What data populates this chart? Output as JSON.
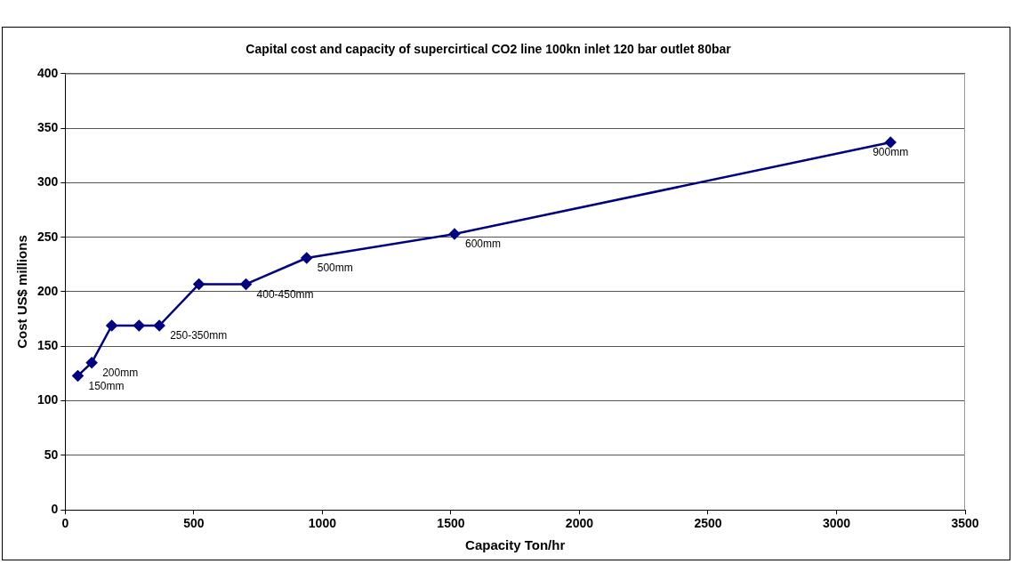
{
  "chart_data": {
    "type": "line",
    "title": "Capital cost and capacity of supercirtical CO2 line 100kn inlet 120 bar outlet 80bar",
    "xlabel": "Capacity Ton/hr",
    "ylabel": "Cost US$ millions",
    "x": [
      49,
      103,
      181,
      287,
      366,
      520,
      703,
      939,
      1514,
      3210
    ],
    "series": [
      {
        "color": "#000080",
        "values": [
          123,
          135,
          169,
          169,
          169,
          207,
          207,
          231,
          253,
          337
        ]
      }
    ],
    "xlim": [
      0,
      3500
    ],
    "xticks": [
      0,
      500,
      1000,
      1500,
      2000,
      2500,
      3000,
      3500
    ],
    "ylim": [
      0,
      400
    ],
    "yticks": [
      0,
      50,
      100,
      150,
      200,
      250,
      300,
      350,
      400
    ],
    "grid": "y",
    "legend": false,
    "marker": "diamond",
    "line_style": "solid",
    "annotations": [
      {
        "text": "150mm",
        "x": 49,
        "y": 123
      },
      {
        "text": "200mm",
        "x": 103,
        "y": 135
      },
      {
        "text": "250-350mm",
        "x": 366,
        "y": 169
      },
      {
        "text": "400-450mm",
        "x": 703,
        "y": 207
      },
      {
        "text": "500mm",
        "x": 939,
        "y": 231
      },
      {
        "text": "600mm",
        "x": 1514,
        "y": 253
      },
      {
        "text": "900mm",
        "x": 3210,
        "y": 337
      }
    ]
  }
}
